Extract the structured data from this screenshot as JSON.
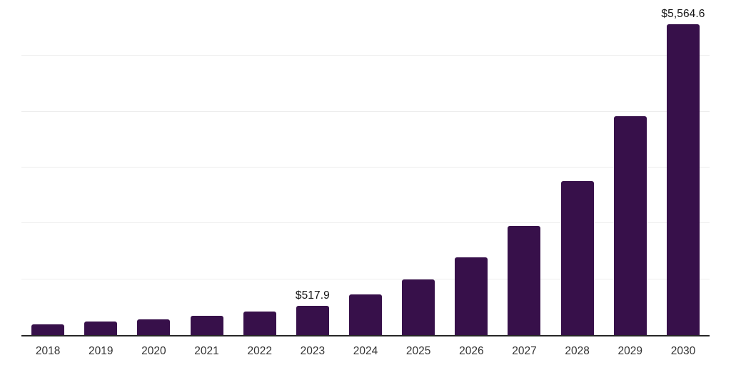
{
  "chart_data": {
    "type": "bar",
    "title": "",
    "xlabel": "",
    "ylabel": "",
    "categories": [
      "2018",
      "2019",
      "2020",
      "2021",
      "2022",
      "2023",
      "2024",
      "2025",
      "2026",
      "2027",
      "2028",
      "2029",
      "2030"
    ],
    "values": [
      191,
      238,
      280,
      344,
      420,
      517.9,
      726,
      995,
      1390,
      1950,
      2760,
      3920,
      5564.6
    ],
    "value_labels": {
      "2023": "$517.9",
      "2030": "$5,564.6"
    },
    "ylim": [
      0,
      6000
    ],
    "gridline_step": 1000,
    "grid": true,
    "legend": false
  },
  "colors": {
    "bar": "#37104A",
    "axis": "#262626",
    "gridline": "#ededed",
    "tick_label": "#333333",
    "value_label": "#141414",
    "background": "#ffffff"
  }
}
